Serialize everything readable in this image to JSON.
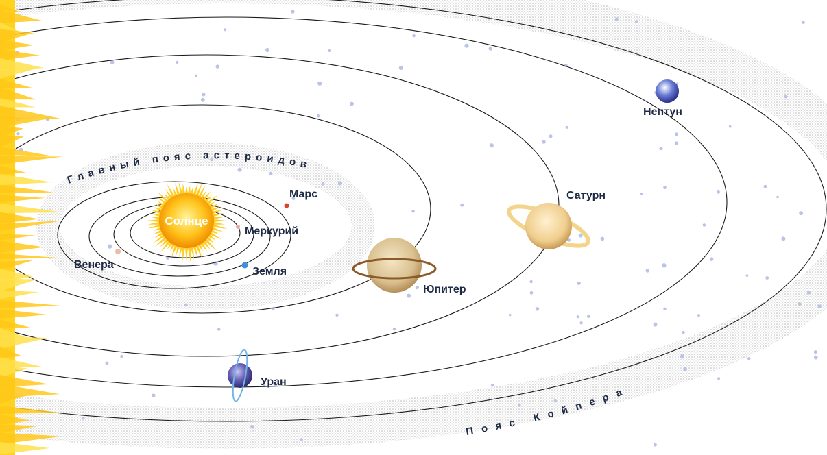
{
  "bodies": [
    {
      "label": "Солнце"
    },
    {
      "label": "Меркурий"
    },
    {
      "label": "Венера"
    },
    {
      "label": "Земля"
    },
    {
      "label": "Марс"
    },
    {
      "label": "Юпитер"
    },
    {
      "label": "Сатурн"
    },
    {
      "label": "Уран"
    },
    {
      "label": "Нептун"
    }
  ],
  "belts": [
    {
      "label": "Главный пояс астероидов"
    },
    {
      "label": "Пояс Койпера"
    }
  ]
}
